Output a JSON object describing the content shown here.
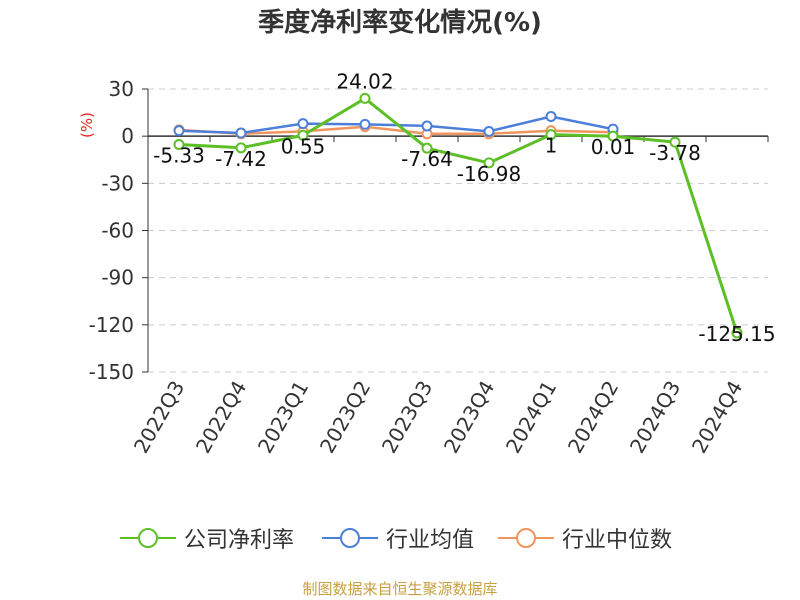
{
  "title": "季度净利率变化情况(%)",
  "source": "制图数据来自恒生聚源数据库",
  "colors": {
    "company": "#5cbf26",
    "industry_avg": "#4b7fd9",
    "industry_median": "#f0955e",
    "unit": "#e8261c"
  },
  "chart_data": {
    "type": "line",
    "title": "季度净利率变化情况(%)",
    "ylabel": "(%)",
    "ylim": [
      -150,
      30
    ],
    "yticks": [
      30,
      0,
      -30,
      -60,
      -90,
      -120,
      -150
    ],
    "grid": true,
    "legend": "bottom",
    "categories": [
      "2022Q3",
      "2022Q4",
      "2023Q1",
      "2023Q2",
      "2023Q3",
      "2023Q4",
      "2024Q1",
      "2024Q2",
      "2024Q3",
      "2024Q4"
    ],
    "series": [
      {
        "name": "公司净利率",
        "values": [
          -5.33,
          -7.42,
          0.55,
          24.02,
          -7.64,
          -16.98,
          1.0,
          0.01,
          -3.78,
          -125.15
        ],
        "labels": [
          "-5.33",
          "-7.42",
          "0.55",
          "24.02",
          "-7.64",
          "-16.98",
          "1",
          "0.01",
          "-3.78",
          "-125.15"
        ]
      },
      {
        "name": "行业均值",
        "values": [
          3.5,
          2.0,
          8.0,
          7.5,
          6.5,
          3.0,
          12.5,
          4.5,
          null,
          null
        ]
      },
      {
        "name": "行业中位数",
        "values": [
          4.0,
          1.5,
          3.0,
          6.0,
          1.5,
          1.5,
          3.5,
          2.5,
          null,
          null
        ]
      }
    ]
  }
}
